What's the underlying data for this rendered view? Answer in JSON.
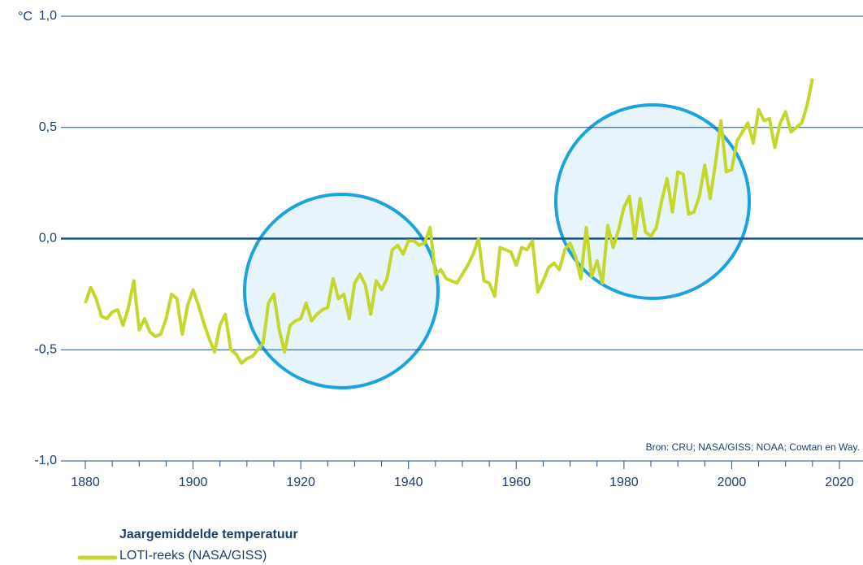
{
  "chart_data": {
    "type": "line",
    "y_label": "°C",
    "source": "Bron: CRU; NASA/GISS; NOAA; Cowtan en Way.",
    "legend_title": "Jaargemiddelde temperatuur",
    "x": [
      1880,
      1881,
      1882,
      1883,
      1884,
      1885,
      1886,
      1887,
      1888,
      1889,
      1890,
      1891,
      1892,
      1893,
      1894,
      1895,
      1896,
      1897,
      1898,
      1899,
      1900,
      1901,
      1902,
      1903,
      1904,
      1905,
      1906,
      1907,
      1908,
      1909,
      1910,
      1911,
      1912,
      1913,
      1914,
      1915,
      1916,
      1917,
      1918,
      1919,
      1920,
      1921,
      1922,
      1923,
      1924,
      1925,
      1926,
      1927,
      1928,
      1929,
      1930,
      1931,
      1932,
      1933,
      1934,
      1935,
      1936,
      1937,
      1938,
      1939,
      1940,
      1941,
      1942,
      1943,
      1944,
      1945,
      1946,
      1947,
      1948,
      1949,
      1950,
      1951,
      1952,
      1953,
      1954,
      1955,
      1956,
      1957,
      1958,
      1959,
      1960,
      1961,
      1962,
      1963,
      1964,
      1965,
      1966,
      1967,
      1968,
      1969,
      1970,
      1971,
      1972,
      1973,
      1974,
      1975,
      1976,
      1977,
      1978,
      1979,
      1980,
      1981,
      1982,
      1983,
      1984,
      1985,
      1986,
      1987,
      1988,
      1989,
      1990,
      1991,
      1992,
      1993,
      1994,
      1995,
      1996,
      1997,
      1998,
      1999,
      2000,
      2001,
      2002,
      2003,
      2004,
      2005,
      2006,
      2007,
      2008,
      2009,
      2010,
      2011,
      2012,
      2013,
      2014,
      2015
    ],
    "series": [
      {
        "name": "LOTI-reeks (NASA/GISS)",
        "color": "#c5d62c",
        "values": [
          -0.29,
          -0.22,
          -0.27,
          -0.35,
          -0.36,
          -0.33,
          -0.32,
          -0.39,
          -0.31,
          -0.19,
          -0.41,
          -0.36,
          -0.42,
          -0.44,
          -0.43,
          -0.36,
          -0.25,
          -0.27,
          -0.43,
          -0.3,
          -0.23,
          -0.3,
          -0.38,
          -0.45,
          -0.51,
          -0.39,
          -0.34,
          -0.5,
          -0.52,
          -0.56,
          -0.54,
          -0.53,
          -0.5,
          -0.47,
          -0.29,
          -0.25,
          -0.41,
          -0.51,
          -0.39,
          -0.37,
          -0.36,
          -0.29,
          -0.37,
          -0.34,
          -0.32,
          -0.31,
          -0.18,
          -0.27,
          -0.25,
          -0.36,
          -0.2,
          -0.16,
          -0.21,
          -0.34,
          -0.19,
          -0.23,
          -0.18,
          -0.05,
          -0.03,
          -0.07,
          -0.01,
          -0.01,
          -0.03,
          -0.02,
          0.05,
          -0.16,
          -0.14,
          -0.18,
          -0.19,
          -0.2,
          -0.16,
          -0.12,
          -0.07,
          0.0,
          -0.19,
          -0.2,
          -0.26,
          -0.04,
          -0.05,
          -0.06,
          -0.12,
          -0.04,
          -0.05,
          -0.01,
          -0.24,
          -0.19,
          -0.13,
          -0.11,
          -0.14,
          -0.05,
          -0.02,
          -0.08,
          -0.18,
          0.05,
          -0.17,
          -0.1,
          -0.2,
          0.06,
          -0.04,
          0.04,
          0.14,
          0.19,
          0.0,
          0.18,
          0.03,
          0.01,
          0.05,
          0.17,
          0.27,
          0.12,
          0.3,
          0.29,
          0.11,
          0.12,
          0.19,
          0.33,
          0.18,
          0.34,
          0.53,
          0.3,
          0.31,
          0.44,
          0.48,
          0.52,
          0.43,
          0.58,
          0.53,
          0.54,
          0.41,
          0.52,
          0.57,
          0.48,
          0.5,
          0.52,
          0.6,
          0.72
        ]
      }
    ],
    "xlim": [
      1873,
      2028
    ],
    "xticks": [
      1880,
      1900,
      1920,
      1940,
      1960,
      1980,
      2000,
      2020
    ],
    "xminorticks": [
      1885,
      1890,
      1895,
      1905,
      1910,
      1915,
      1925,
      1930,
      1935,
      1945,
      1950,
      1955,
      1965,
      1970,
      1975,
      1985,
      1990,
      1995,
      2005,
      2010,
      2015
    ],
    "ylim": [
      -1,
      1
    ],
    "yticks": [
      {
        "value": 1,
        "label": "1,0"
      },
      {
        "value": 0.5,
        "label": "0,5"
      },
      {
        "value": 0,
        "label": "0,0"
      },
      {
        "value": -0.5,
        "label": "-0,5"
      },
      {
        "value": -1,
        "label": "-1,0"
      }
    ],
    "grid": true,
    "grid_color": "#1c4f8c"
  }
}
